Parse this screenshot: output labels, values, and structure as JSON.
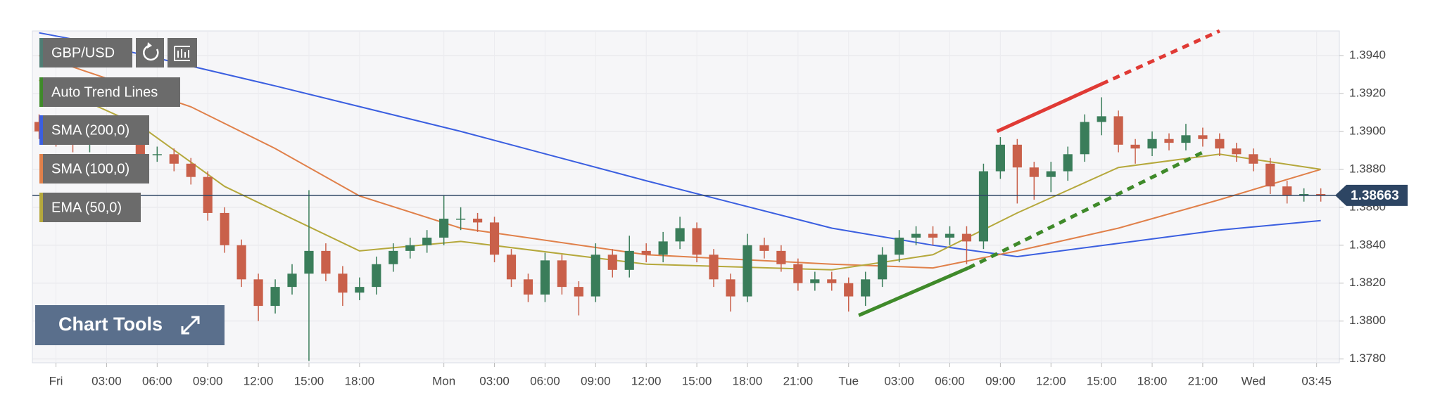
{
  "chart_data": {
    "type": "candlestick",
    "symbol": "GBP/USD",
    "symbol_color": "#4f7d74",
    "up_color": "#3a7d5a",
    "down_color": "#c9604a",
    "x": [
      -1,
      0,
      1,
      2,
      3,
      4,
      5,
      6,
      7,
      8,
      9,
      10,
      11,
      12,
      13,
      14,
      15,
      16,
      17,
      18,
      19,
      20,
      21,
      22,
      23,
      24,
      25,
      26,
      27,
      28,
      29,
      30,
      31,
      32,
      33,
      34,
      35,
      36,
      37,
      38,
      39,
      40,
      41,
      42,
      43,
      44,
      45,
      46,
      47,
      48,
      49,
      50,
      51,
      52,
      53,
      54,
      55,
      56,
      57,
      58,
      59,
      60,
      61,
      62,
      63,
      64,
      65,
      66,
      67,
      68,
      69,
      70,
      71,
      72,
      73,
      74,
      75
    ],
    "open": [
      1.3905,
      1.39,
      1.3896,
      1.3893,
      1.39,
      1.3903,
      1.3898,
      1.3888,
      1.3888,
      1.3883,
      1.3876,
      1.3857,
      1.384,
      1.3822,
      1.3808,
      1.3818,
      1.3825,
      1.3837,
      1.3825,
      1.3815,
      1.3818,
      1.383,
      1.3837,
      1.384,
      1.3844,
      1.3854,
      1.3854,
      1.3852,
      1.3835,
      1.3822,
      1.3814,
      1.3832,
      1.3818,
      1.3813,
      1.3835,
      1.3827,
      1.3837,
      1.3835,
      1.3842,
      1.3849,
      1.3835,
      1.3822,
      1.3813,
      1.384,
      1.3837,
      1.383,
      1.382,
      1.3822,
      1.382,
      1.3813,
      1.3822,
      1.3835,
      1.3844,
      1.3846,
      1.3844,
      1.3846,
      1.3842,
      1.3879,
      1.3893,
      1.3881,
      1.3876,
      1.3879,
      1.3888,
      1.3905,
      1.3908,
      1.3893,
      1.3891,
      1.3896,
      1.3894,
      1.3898,
      1.3896,
      1.3891,
      1.3888,
      1.3883,
      1.3871,
      1.3866,
      1.3867
    ],
    "high": [
      1.3909,
      1.3904,
      1.39,
      1.3905,
      1.3908,
      1.3907,
      1.3901,
      1.3892,
      1.3891,
      1.3886,
      1.3879,
      1.386,
      1.3843,
      1.3825,
      1.3822,
      1.383,
      1.3869,
      1.3841,
      1.3829,
      1.3823,
      1.3834,
      1.3841,
      1.3844,
      1.3848,
      1.3866,
      1.386,
      1.3857,
      1.3855,
      1.3838,
      1.3825,
      1.3836,
      1.3835,
      1.3821,
      1.3841,
      1.3838,
      1.3845,
      1.3841,
      1.3847,
      1.3855,
      1.3852,
      1.3838,
      1.3825,
      1.3846,
      1.3844,
      1.384,
      1.3833,
      1.3826,
      1.3826,
      1.3823,
      1.3826,
      1.3839,
      1.3848,
      1.385,
      1.385,
      1.385,
      1.385,
      1.3883,
      1.3897,
      1.3896,
      1.3884,
      1.3884,
      1.3892,
      1.3909,
      1.3918,
      1.3911,
      1.3896,
      1.39,
      1.3899,
      1.3904,
      1.3902,
      1.3899,
      1.3894,
      1.3891,
      1.3886,
      1.3874,
      1.387,
      1.387
    ],
    "low": [
      1.3896,
      1.3892,
      1.3889,
      1.3889,
      1.3896,
      1.3894,
      1.3884,
      1.3884,
      1.3879,
      1.3872,
      1.3853,
      1.3836,
      1.3818,
      1.38,
      1.3804,
      1.3814,
      1.3779,
      1.3821,
      1.3808,
      1.3811,
      1.3814,
      1.3826,
      1.3833,
      1.3836,
      1.384,
      1.3848,
      1.3847,
      1.3831,
      1.3818,
      1.381,
      1.381,
      1.3814,
      1.3803,
      1.381,
      1.3823,
      1.3823,
      1.3831,
      1.3831,
      1.3838,
      1.3831,
      1.3818,
      1.3805,
      1.381,
      1.3833,
      1.3826,
      1.3816,
      1.3816,
      1.3816,
      1.3805,
      1.3808,
      1.3818,
      1.3831,
      1.384,
      1.384,
      1.384,
      1.383,
      1.3838,
      1.3875,
      1.3862,
      1.3864,
      1.3868,
      1.3874,
      1.3884,
      1.3898,
      1.3889,
      1.3883,
      1.3887,
      1.389,
      1.389,
      1.3892,
      1.3887,
      1.3884,
      1.3879,
      1.3867,
      1.3862,
      1.3863,
      1.3863
    ],
    "close": [
      1.39,
      1.3896,
      1.3893,
      1.39,
      1.3903,
      1.3898,
      1.3888,
      1.3888,
      1.3883,
      1.3876,
      1.3857,
      1.384,
      1.3822,
      1.3808,
      1.3818,
      1.3825,
      1.3837,
      1.3825,
      1.3815,
      1.3818,
      1.383,
      1.3837,
      1.384,
      1.3844,
      1.3854,
      1.3854,
      1.3852,
      1.3835,
      1.3822,
      1.3814,
      1.3832,
      1.3818,
      1.3813,
      1.3835,
      1.3827,
      1.3837,
      1.3835,
      1.3842,
      1.3849,
      1.3835,
      1.3822,
      1.3813,
      1.384,
      1.3837,
      1.383,
      1.382,
      1.3822,
      1.382,
      1.3813,
      1.3822,
      1.3835,
      1.3844,
      1.3846,
      1.3844,
      1.3846,
      1.3842,
      1.3879,
      1.3893,
      1.3881,
      1.3876,
      1.3879,
      1.3888,
      1.3905,
      1.3908,
      1.3893,
      1.3891,
      1.3896,
      1.3894,
      1.3898,
      1.3896,
      1.3891,
      1.3888,
      1.3883,
      1.3871,
      1.3866,
      1.3867,
      1.3866
    ],
    "xlim": [
      -1.4,
      76.1
    ],
    "xticks": [
      {
        "value": 0,
        "label": "Fri"
      },
      {
        "value": 3,
        "label": "03:00"
      },
      {
        "value": 6,
        "label": "06:00"
      },
      {
        "value": 9,
        "label": "09:00"
      },
      {
        "value": 12,
        "label": "12:00"
      },
      {
        "value": 15,
        "label": "15:00"
      },
      {
        "value": 18,
        "label": "18:00"
      },
      {
        "value": 23,
        "label": "Mon"
      },
      {
        "value": 26,
        "label": "03:00"
      },
      {
        "value": 29,
        "label": "06:00"
      },
      {
        "value": 32,
        "label": "09:00"
      },
      {
        "value": 35,
        "label": "12:00"
      },
      {
        "value": 38,
        "label": "15:00"
      },
      {
        "value": 41,
        "label": "18:00"
      },
      {
        "value": 44,
        "label": "21:00"
      },
      {
        "value": 47,
        "label": "Tue"
      },
      {
        "value": 50,
        "label": "03:00"
      },
      {
        "value": 53,
        "label": "06:00"
      },
      {
        "value": 56,
        "label": "09:00"
      },
      {
        "value": 59,
        "label": "12:00"
      },
      {
        "value": 62,
        "label": "15:00"
      },
      {
        "value": 65,
        "label": "18:00"
      },
      {
        "value": 68,
        "label": "21:00"
      },
      {
        "value": 71,
        "label": "Wed"
      },
      {
        "value": 74.75,
        "label": "03:45"
      }
    ],
    "ylim": [
      1.3778,
      1.3953
    ],
    "yticks": [
      {
        "value": 1.378,
        "label": "1.3780"
      },
      {
        "value": 1.38,
        "label": "1.3800"
      },
      {
        "value": 1.382,
        "label": "1.3820"
      },
      {
        "value": 1.384,
        "label": "1.3840"
      },
      {
        "value": 1.386,
        "label": "1.3860"
      },
      {
        "value": 1.388,
        "label": "1.3880"
      },
      {
        "value": 1.39,
        "label": "1.3900"
      },
      {
        "value": 1.392,
        "label": "1.3920"
      },
      {
        "value": 1.394,
        "label": "1.3940"
      }
    ],
    "grid": true,
    "trend_lines": {
      "name": "Auto Trend Lines",
      "color": "#3f8a2a",
      "lines": [
        {
          "color": "#e03a35",
          "dashed": false,
          "x": [
            55.8,
            62
          ],
          "values": [
            1.39,
            1.3925
          ]
        },
        {
          "color": "#e03a35",
          "dashed": true,
          "x": [
            62,
            69
          ],
          "values": [
            1.3925,
            1.3953
          ]
        },
        {
          "color": "#3f8a2a",
          "dashed": false,
          "x": [
            47.6,
            54.1
          ],
          "values": [
            1.3803,
            1.3828
          ]
        },
        {
          "color": "#3f8a2a",
          "dashed": true,
          "x": [
            54.1,
            68
          ],
          "values": [
            1.3828,
            1.3889
          ]
        }
      ]
    },
    "series": [
      {
        "name": "SMA (200,0)",
        "color": "#3b5fe0",
        "x": [
          -1,
          2,
          13,
          24,
          35,
          46,
          52,
          57,
          63,
          69,
          75
        ],
        "values": [
          1.3952,
          1.3947,
          1.3924,
          1.39,
          1.3874,
          1.3849,
          1.384,
          1.3834,
          1.3841,
          1.3848,
          1.3853
        ]
      },
      {
        "name": "SMA (100,0)",
        "color": "#e0804a",
        "x": [
          -1,
          8,
          13,
          18,
          24,
          35,
          46,
          52,
          57,
          63,
          69,
          75
        ],
        "values": [
          1.394,
          1.3913,
          1.3891,
          1.3866,
          1.3849,
          1.3835,
          1.383,
          1.3828,
          1.3837,
          1.3849,
          1.3864,
          1.388
        ]
      },
      {
        "name": "EMA (50,0)",
        "color": "#b5a83c",
        "x": [
          -1,
          5,
          10,
          18,
          24,
          35,
          46,
          52,
          57,
          63,
          69,
          75
        ],
        "values": [
          1.3927,
          1.3903,
          1.3871,
          1.3837,
          1.3842,
          1.383,
          1.3827,
          1.3835,
          1.3857,
          1.3881,
          1.3888,
          1.388
        ]
      }
    ],
    "last_price": {
      "value": 1.38663,
      "color": "#2d4563"
    },
    "tool_button": "Chart Tools"
  }
}
